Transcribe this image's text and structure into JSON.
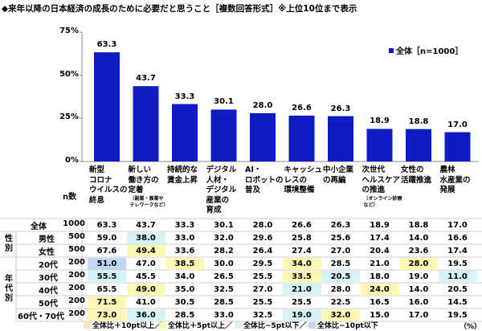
{
  "title": "◆来年以降の日本経済の成長のために必要だと思うこと［複数回答形式］※上位10位まで表示",
  "legend_label": "全体［n=1000］",
  "n_header": "n数",
  "percent_symbol": "（%）",
  "colors": {
    "bar": "#0f1cc4",
    "plus10": "#fde2c6",
    "plus5": "#fff8b5",
    "minus5": "#d5f3f8",
    "minus10": "#bfd8f4"
  },
  "chart_data": {
    "type": "bar",
    "yticks": [
      "0%",
      "25%",
      "50%",
      "75%"
    ],
    "ylim": [
      0,
      75
    ],
    "grid": false,
    "categories": [
      {
        "lines": [
          "新型",
          "コロナ",
          "ウイルスの",
          "終息"
        ]
      },
      {
        "lines": [
          "新しい",
          "働き方の",
          "定着"
        ],
        "sub": [
          "（副業・兼業や",
          "テレワークなど）"
        ]
      },
      {
        "lines": [
          "持続的な",
          "賃金上昇"
        ]
      },
      {
        "lines": [
          "デジタル",
          "人材・",
          "デジタル",
          "産業の",
          "育成"
        ]
      },
      {
        "lines": [
          "AI・",
          "ロボットの",
          "普及"
        ]
      },
      {
        "lines": [
          "キャッシュ",
          "レスの",
          "環境整備"
        ]
      },
      {
        "lines": [
          "中小企業",
          "の再編"
        ]
      },
      {
        "lines": [
          "次世代",
          "ヘルスケア",
          "の推進"
        ],
        "sub": [
          "（オンライン診療",
          "など）"
        ]
      },
      {
        "lines": [
          "女性の",
          "活躍推進"
        ]
      },
      {
        "lines": [
          "農林",
          "水産業の",
          "発展"
        ]
      }
    ],
    "series": [
      {
        "name": "全体［n=1000］",
        "values": [
          63.3,
          43.7,
          33.3,
          30.1,
          28.0,
          26.6,
          26.3,
          18.9,
          18.8,
          17.0
        ]
      }
    ],
    "labels": [
      "63.3",
      "43.7",
      "33.3",
      "30.1",
      "28.0",
      "26.6",
      "26.3",
      "18.9",
      "18.8",
      "17.0"
    ]
  },
  "table": {
    "groups": [
      {
        "label": "性別",
        "rows": [
          1,
          2
        ]
      },
      {
        "label": "年代別",
        "rows": [
          3,
          4,
          5,
          6,
          7
        ]
      }
    ],
    "rows": [
      {
        "label": "全体",
        "n": "1000",
        "values": [
          "63.3",
          "43.7",
          "33.3",
          "30.1",
          "28.0",
          "26.6",
          "26.3",
          "18.9",
          "18.8",
          "17.0"
        ],
        "hl": [
          "",
          "",
          "",
          "",
          "",
          "",
          "",
          "",
          "",
          ""
        ]
      },
      {
        "label": "男性",
        "n": "500",
        "values": [
          "59.0",
          "38.0",
          "33.0",
          "32.0",
          "29.6",
          "25.8",
          "25.6",
          "17.4",
          "14.0",
          "16.6"
        ],
        "hl": [
          "",
          "m5",
          "",
          "",
          "",
          "",
          "",
          "",
          "",
          ""
        ]
      },
      {
        "label": "女性",
        "n": "500",
        "values": [
          "67.6",
          "49.4",
          "33.6",
          "28.2",
          "26.4",
          "27.4",
          "27.0",
          "20.4",
          "23.6",
          "17.4"
        ],
        "hl": [
          "",
          "p5",
          "",
          "",
          "",
          "",
          "",
          "",
          "",
          ""
        ]
      },
      {
        "label": "20代",
        "n": "200",
        "values": [
          "51.0",
          "47.0",
          "38.5",
          "30.0",
          "29.5",
          "34.0",
          "28.5",
          "21.0",
          "28.0",
          "19.5"
        ],
        "hl": [
          "m10",
          "",
          "p5",
          "",
          "",
          "p5",
          "",
          "",
          "p5",
          ""
        ]
      },
      {
        "label": "30代",
        "n": "200",
        "values": [
          "55.5",
          "45.5",
          "34.0",
          "26.5",
          "25.5",
          "33.5",
          "20.5",
          "18.0",
          "19.0",
          "11.0"
        ],
        "hl": [
          "m5",
          "",
          "",
          "",
          "",
          "p5",
          "m5",
          "",
          "",
          "m5"
        ]
      },
      {
        "label": "40代",
        "n": "200",
        "values": [
          "65.5",
          "49.0",
          "35.0",
          "32.5",
          "27.0",
          "21.0",
          "28.0",
          "24.0",
          "14.0",
          "20.5"
        ],
        "hl": [
          "",
          "p5",
          "",
          "",
          "",
          "m5",
          "",
          "p5",
          "",
          ""
        ]
      },
      {
        "label": "50代",
        "n": "200",
        "values": [
          "71.5",
          "41.0",
          "30.5",
          "28.5",
          "25.5",
          "25.5",
          "22.5",
          "16.5",
          "16.0",
          "14.5"
        ],
        "hl": [
          "p5",
          "",
          "",
          "",
          "",
          "",
          "",
          "",
          "",
          ""
        ]
      },
      {
        "label": "60代・70代",
        "n": "200",
        "values": [
          "73.0",
          "36.0",
          "28.5",
          "33.0",
          "32.5",
          "19.0",
          "32.0",
          "15.0",
          "17.0",
          "19.5"
        ],
        "hl": [
          "p5",
          "m5",
          "",
          "",
          "",
          "m5",
          "p5",
          "",
          "",
          ""
        ]
      }
    ]
  },
  "footer": {
    "p10": "全体比＋10pt以上／",
    "p5": "全体比＋5pt以上／",
    "m5": "全体比−5pt以下／",
    "m10": "全体比−10pt以下"
  }
}
